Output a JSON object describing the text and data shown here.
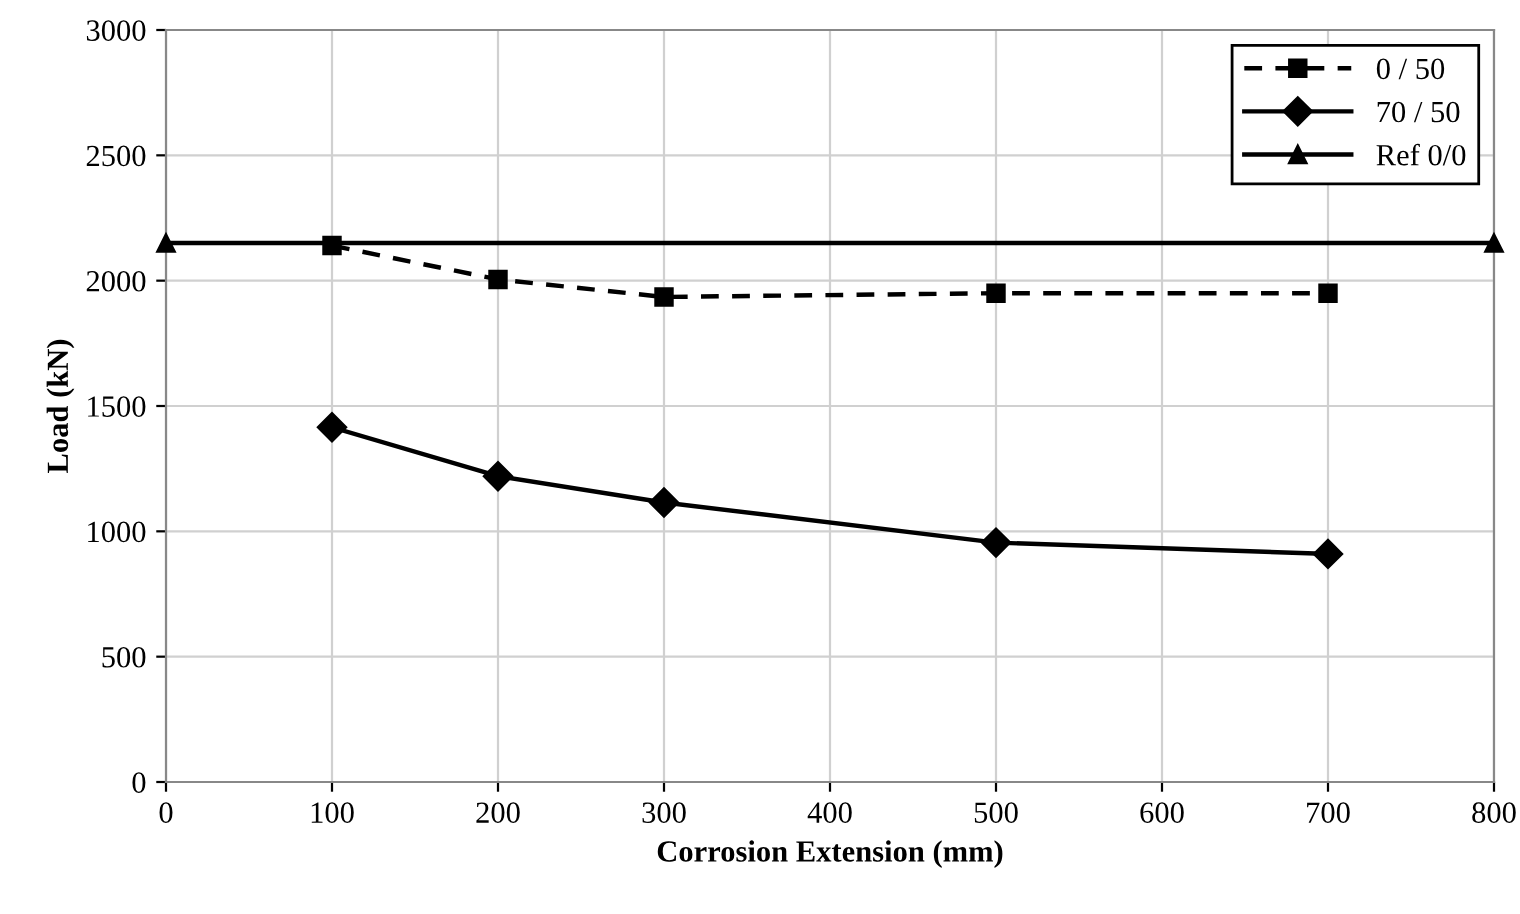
{
  "chart_data": {
    "type": "line",
    "xlabel": "Corrosion Extension (mm)",
    "ylabel": "Load (kN)",
    "series": [
      {
        "name": "0 / 50",
        "color": "#000000",
        "x": [
          100,
          200,
          300,
          500,
          700
        ],
        "values": [
          2140,
          2005,
          1935,
          1950,
          1950
        ],
        "marker": "square",
        "line_style": "dashed"
      },
      {
        "name": "70 / 50",
        "color": "#000000",
        "x": [
          100,
          200,
          300,
          500,
          700
        ],
        "values": [
          1415,
          1220,
          1115,
          955,
          910
        ],
        "marker": "diamond",
        "line_style": "solid"
      },
      {
        "name": "Ref 0/0",
        "color": "#000000",
        "x": [
          0,
          800
        ],
        "values": [
          2150,
          2150
        ],
        "marker": "triangle",
        "line_style": "solid"
      }
    ],
    "xlim": [
      0,
      800
    ],
    "xticks": [
      0,
      100,
      200,
      300,
      400,
      500,
      600,
      700,
      800
    ],
    "ylim": [
      0,
      3000
    ],
    "yticks": [
      0,
      500,
      1000,
      1500,
      2000,
      2500,
      3000
    ],
    "grid": true,
    "legend": "top right"
  }
}
